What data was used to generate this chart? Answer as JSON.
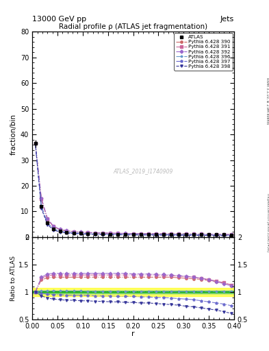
{
  "title_top_left": "13000 GeV pp",
  "title_top_right": "Jets",
  "main_title": "Radial profile ρ (ATLAS jet fragmentation)",
  "xlabel": "r",
  "ylabel_main": "fraction/bin",
  "ylabel_ratio": "Ratio to ATLAS",
  "watermark": "ATLAS_2019_I1740909",
  "right_label_top": "Rivet 3.1.10, ≥ 2.9M events",
  "right_label_bot": "mcplots.cern.ch [arXiv:1306.3436]",
  "ylim_main": [
    0,
    80
  ],
  "ylim_ratio": [
    0.5,
    2.0
  ],
  "xlim": [
    0.0,
    0.4
  ],
  "r_values": [
    0.006,
    0.018,
    0.03,
    0.042,
    0.055,
    0.068,
    0.082,
    0.096,
    0.11,
    0.125,
    0.14,
    0.155,
    0.17,
    0.185,
    0.2,
    0.215,
    0.23,
    0.245,
    0.26,
    0.275,
    0.29,
    0.305,
    0.32,
    0.335,
    0.35,
    0.365,
    0.38,
    0.395
  ],
  "atlas_values": [
    36.5,
    12.0,
    5.5,
    3.2,
    2.3,
    1.9,
    1.65,
    1.5,
    1.38,
    1.28,
    1.22,
    1.17,
    1.13,
    1.1,
    1.07,
    1.05,
    1.03,
    1.02,
    1.01,
    1.0,
    0.99,
    0.98,
    0.97,
    0.96,
    0.95,
    0.94,
    0.93,
    0.92
  ],
  "atlas_err_lo": [
    1.5,
    0.4,
    0.2,
    0.1,
    0.06,
    0.05,
    0.04,
    0.03,
    0.03,
    0.02,
    0.02,
    0.02,
    0.01,
    0.01,
    0.01,
    0.01,
    0.01,
    0.01,
    0.01,
    0.01,
    0.01,
    0.01,
    0.01,
    0.01,
    0.01,
    0.01,
    0.01,
    0.01
  ],
  "atlas_err_hi": [
    1.5,
    0.4,
    0.2,
    0.1,
    0.06,
    0.05,
    0.04,
    0.03,
    0.03,
    0.02,
    0.02,
    0.02,
    0.01,
    0.01,
    0.01,
    0.01,
    0.01,
    0.01,
    0.01,
    0.01,
    0.01,
    0.01,
    0.01,
    0.01,
    0.01,
    0.01,
    0.01,
    0.01
  ],
  "series": [
    {
      "label": "Pythia 6.428 390",
      "color": "#cc6666",
      "marker": "o",
      "linestyle": "-.",
      "ratio": [
        1.0,
        1.22,
        1.26,
        1.27,
        1.27,
        1.27,
        1.27,
        1.27,
        1.27,
        1.27,
        1.27,
        1.27,
        1.27,
        1.27,
        1.27,
        1.27,
        1.27,
        1.27,
        1.27,
        1.27,
        1.26,
        1.25,
        1.24,
        1.23,
        1.21,
        1.19,
        1.16,
        1.13
      ]
    },
    {
      "label": "Pythia 6.428 391",
      "color": "#cc6699",
      "marker": "s",
      "linestyle": "-.",
      "ratio": [
        1.0,
        1.25,
        1.3,
        1.31,
        1.31,
        1.31,
        1.31,
        1.31,
        1.31,
        1.31,
        1.31,
        1.31,
        1.31,
        1.31,
        1.31,
        1.31,
        1.31,
        1.31,
        1.3,
        1.3,
        1.29,
        1.28,
        1.27,
        1.25,
        1.23,
        1.2,
        1.17,
        1.13
      ]
    },
    {
      "label": "Pythia 6.428 392",
      "color": "#9966cc",
      "marker": "D",
      "linestyle": "-.",
      "ratio": [
        1.0,
        1.27,
        1.33,
        1.34,
        1.34,
        1.34,
        1.34,
        1.34,
        1.34,
        1.34,
        1.34,
        1.34,
        1.34,
        1.34,
        1.33,
        1.33,
        1.33,
        1.32,
        1.32,
        1.31,
        1.3,
        1.29,
        1.27,
        1.25,
        1.22,
        1.19,
        1.15,
        1.11
      ]
    },
    {
      "label": "Pythia 6.428 396",
      "color": "#6699cc",
      "marker": "*",
      "linestyle": "-.",
      "ratio": [
        1.0,
        1.02,
        1.02,
        1.02,
        1.02,
        1.02,
        1.02,
        1.02,
        1.01,
        1.01,
        1.01,
        1.01,
        1.01,
        1.01,
        1.01,
        1.01,
        1.01,
        1.01,
        1.01,
        1.01,
        1.01,
        1.01,
        1.01,
        1.01,
        1.01,
        1.01,
        1.01,
        1.01
      ]
    },
    {
      "label": "Pythia 6.428 397",
      "color": "#6666cc",
      "marker": "p",
      "linestyle": "-.",
      "ratio": [
        1.0,
        0.98,
        0.96,
        0.95,
        0.95,
        0.94,
        0.94,
        0.94,
        0.94,
        0.93,
        0.93,
        0.93,
        0.92,
        0.92,
        0.92,
        0.91,
        0.91,
        0.9,
        0.9,
        0.89,
        0.88,
        0.87,
        0.86,
        0.84,
        0.82,
        0.8,
        0.78,
        0.75
      ]
    },
    {
      "label": "Pythia 6.428 398",
      "color": "#333399",
      "marker": "v",
      "linestyle": "--",
      "ratio": [
        1.0,
        0.93,
        0.89,
        0.87,
        0.86,
        0.85,
        0.85,
        0.84,
        0.84,
        0.83,
        0.83,
        0.82,
        0.82,
        0.81,
        0.81,
        0.8,
        0.8,
        0.79,
        0.78,
        0.77,
        0.76,
        0.74,
        0.73,
        0.71,
        0.69,
        0.67,
        0.64,
        0.61
      ]
    }
  ]
}
